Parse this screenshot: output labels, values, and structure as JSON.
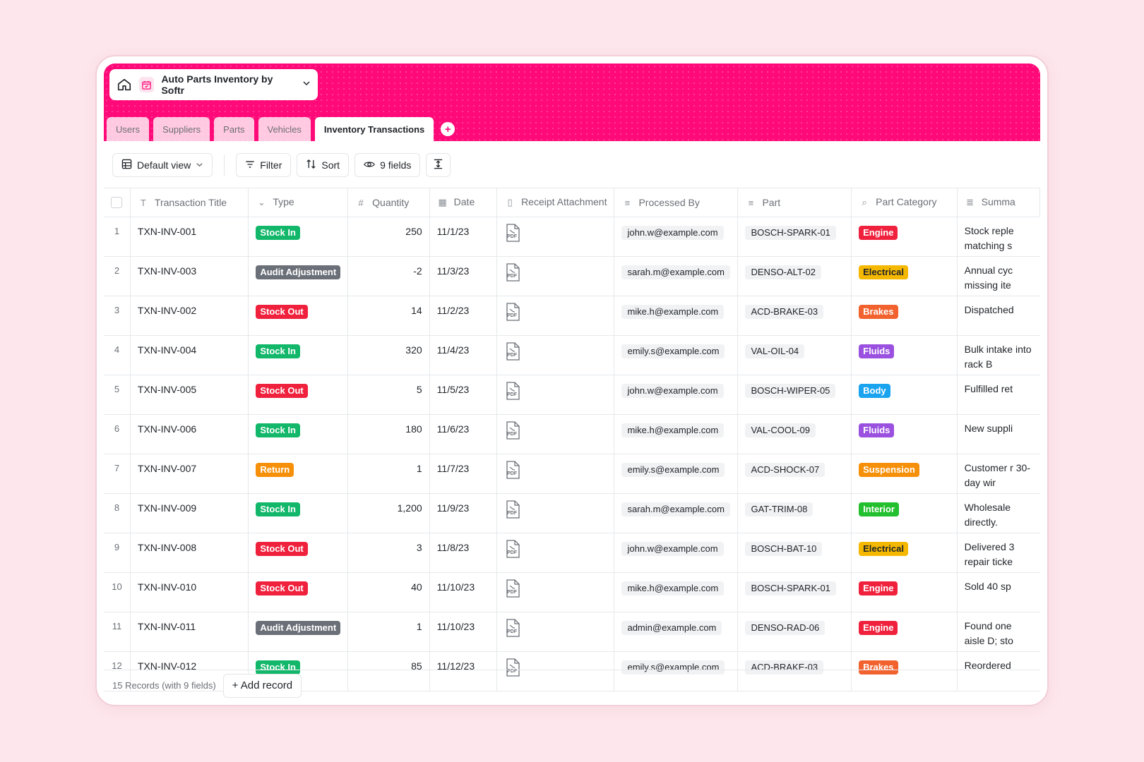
{
  "colors": {
    "brand": "#ff0a78",
    "stock_in": "#12b76a",
    "stock_out": "#f0213d",
    "audit": "#6b7078",
    "return": "#f79009"
  },
  "app": {
    "title": "Auto Parts Inventory by Softr"
  },
  "tabs": [
    {
      "label": "Users"
    },
    {
      "label": "Suppliers"
    },
    {
      "label": "Parts"
    },
    {
      "label": "Vehicles"
    },
    {
      "label": "Inventory Transactions",
      "active": true
    }
  ],
  "toolbar": {
    "view_label": "Default view",
    "filter_label": "Filter",
    "sort_label": "Sort",
    "fields_label": "9 fields"
  },
  "columns": [
    {
      "label": "Transaction Title",
      "icon": "text-type-icon"
    },
    {
      "label": "Type",
      "icon": "single-select-icon"
    },
    {
      "label": "Quantity",
      "icon": "number-icon"
    },
    {
      "label": "Date",
      "icon": "calendar-icon"
    },
    {
      "label": "Receipt Attachment",
      "icon": "file-icon"
    },
    {
      "label": "Processed By",
      "icon": "link-icon"
    },
    {
      "label": "Part",
      "icon": "link-icon"
    },
    {
      "label": "Part Category",
      "icon": "lookup-icon"
    },
    {
      "label": "Summa",
      "icon": "ai-text-icon"
    }
  ],
  "rows": [
    {
      "n": "1",
      "title": "TXN-INV-001",
      "type": "Stock In",
      "type_color": "#12b76a",
      "qty": "250",
      "date": "11/1/23",
      "pdf": "PDF",
      "by": "john.w@example.com",
      "part": "BOSCH-SPARK-01",
      "cat": "Engine",
      "cat_color": "#f0213d",
      "summary": "Stock reple matching s"
    },
    {
      "n": "2",
      "title": "TXN-INV-003",
      "type": "Audit Adjustment",
      "type_color": "#6b7078",
      "qty": "-2",
      "date": "11/3/23",
      "pdf": "PDF",
      "by": "sarah.m@example.com",
      "part": "DENSO-ALT-02",
      "cat": "Electrical",
      "cat_color": "#f5b800",
      "cat_text": "#1f2328",
      "summary": "Annual cyc missing ite"
    },
    {
      "n": "3",
      "title": "TXN-INV-002",
      "type": "Stock Out",
      "type_color": "#f0213d",
      "qty": "14",
      "date": "11/2/23",
      "pdf": "PDF",
      "by": "mike.h@example.com",
      "part": "ACD-BRAKE-03",
      "cat": "Brakes",
      "cat_color": "#f2622e",
      "summary": "Dispatched"
    },
    {
      "n": "4",
      "title": "TXN-INV-004",
      "type": "Stock In",
      "type_color": "#12b76a",
      "qty": "320",
      "date": "11/4/23",
      "pdf": "PDF",
      "by": "emily.s@example.com",
      "part": "VAL-OIL-04",
      "cat": "Fluids",
      "cat_color": "#9b51e0",
      "summary": "Bulk intake into rack B"
    },
    {
      "n": "5",
      "title": "TXN-INV-005",
      "type": "Stock Out",
      "type_color": "#f0213d",
      "qty": "5",
      "date": "11/5/23",
      "pdf": "PDF",
      "by": "john.w@example.com",
      "part": "BOSCH-WIPER-05",
      "cat": "Body",
      "cat_color": "#1aa3ef",
      "summary": "Fulfilled ret"
    },
    {
      "n": "6",
      "title": "TXN-INV-006",
      "type": "Stock In",
      "type_color": "#12b76a",
      "qty": "180",
      "date": "11/6/23",
      "pdf": "PDF",
      "by": "mike.h@example.com",
      "part": "VAL-COOL-09",
      "cat": "Fluids",
      "cat_color": "#9b51e0",
      "summary": "New suppli"
    },
    {
      "n": "7",
      "title": "TXN-INV-007",
      "type": "Return",
      "type_color": "#f79009",
      "qty": "1",
      "date": "11/7/23",
      "pdf": "PDF",
      "by": "emily.s@example.com",
      "part": "ACD-SHOCK-07",
      "cat": "Suspension",
      "cat_color": "#f79009",
      "summary": "Customer r 30-day wir"
    },
    {
      "n": "8",
      "title": "TXN-INV-009",
      "type": "Stock In",
      "type_color": "#12b76a",
      "qty": "1,200",
      "date": "11/9/23",
      "pdf": "PDF",
      "by": "sarah.m@example.com",
      "part": "GAT-TRIM-08",
      "cat": "Interior",
      "cat_color": "#22c02e",
      "summary": "Wholesale directly."
    },
    {
      "n": "9",
      "title": "TXN-INV-008",
      "type": "Stock Out",
      "type_color": "#f0213d",
      "qty": "3",
      "date": "11/8/23",
      "pdf": "PDF",
      "by": "john.w@example.com",
      "part": "BOSCH-BAT-10",
      "cat": "Electrical",
      "cat_color": "#f5b800",
      "cat_text": "#1f2328",
      "summary": "Delivered 3 repair ticke"
    },
    {
      "n": "10",
      "title": "TXN-INV-010",
      "type": "Stock Out",
      "type_color": "#f0213d",
      "qty": "40",
      "date": "11/10/23",
      "pdf": "PDF",
      "by": "mike.h@example.com",
      "part": "BOSCH-SPARK-01",
      "cat": "Engine",
      "cat_color": "#f0213d",
      "summary": "Sold 40 sp"
    },
    {
      "n": "11",
      "title": "TXN-INV-011",
      "type": "Audit Adjustment",
      "type_color": "#6b7078",
      "qty": "1",
      "date": "11/10/23",
      "pdf": "PDF",
      "by": "admin@example.com",
      "part": "DENSO-RAD-06",
      "cat": "Engine",
      "cat_color": "#f0213d",
      "summary": "Found one aisle D; sto"
    },
    {
      "n": "12",
      "title": "TXN-INV-012",
      "type": "Stock In",
      "type_color": "#12b76a",
      "qty": "85",
      "date": "11/12/23",
      "pdf": "PDF",
      "by": "emily.s@example.com",
      "part": "ACD-BRAKE-03",
      "cat": "Brakes",
      "cat_color": "#f2622e",
      "summary": "Reordered"
    }
  ],
  "footer": {
    "count_label": "15 Records (with 9 fields)",
    "add_label": "+ Add record"
  }
}
